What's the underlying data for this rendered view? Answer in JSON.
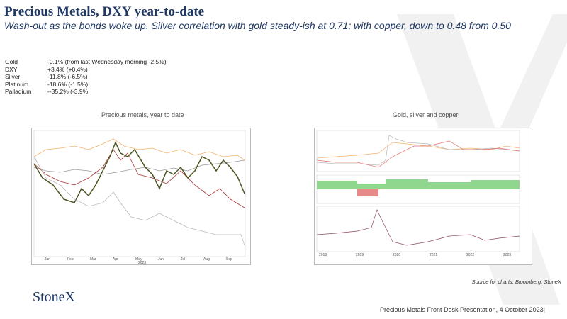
{
  "header": {
    "title": "Precious Metals, DXY year-to-date",
    "subtitle": "Wash-out as the bonds woke up.  Silver correlation with gold steady-ish at 0.71; with copper, down to 0.48 from 0.50"
  },
  "metrics": {
    "rows": [
      [
        "Gold",
        "-0.1%  (from last Wednesday morning -2.5%)"
      ],
      [
        "DXY",
        "+3.4%  (+0.4%)"
      ],
      [
        "Silver",
        "-11.8%   (-6.5%)"
      ],
      [
        "Platinum",
        "-18.6%  (-1.5%)"
      ],
      [
        "Palladium",
        "--35.2% (-3.9%"
      ]
    ]
  },
  "charts": [
    {
      "title": "Precious metals, year to date",
      "x_labels": [
        "Jan",
        "Feb",
        "Mar",
        "Apr",
        "May",
        "Jun",
        "Jul",
        "Aug",
        "Sep"
      ],
      "year": "2023"
    },
    {
      "title": "Gold, silver and copper",
      "x_labels": [
        "2018",
        "2019",
        "2020",
        "2021",
        "2022",
        "2023"
      ]
    }
  ],
  "source": "Source for charts: Bloomberg, StoneX",
  "logo": "StoneX",
  "footer": "Precious Metals Front Desk Presentation, 4 October 2023|"
}
